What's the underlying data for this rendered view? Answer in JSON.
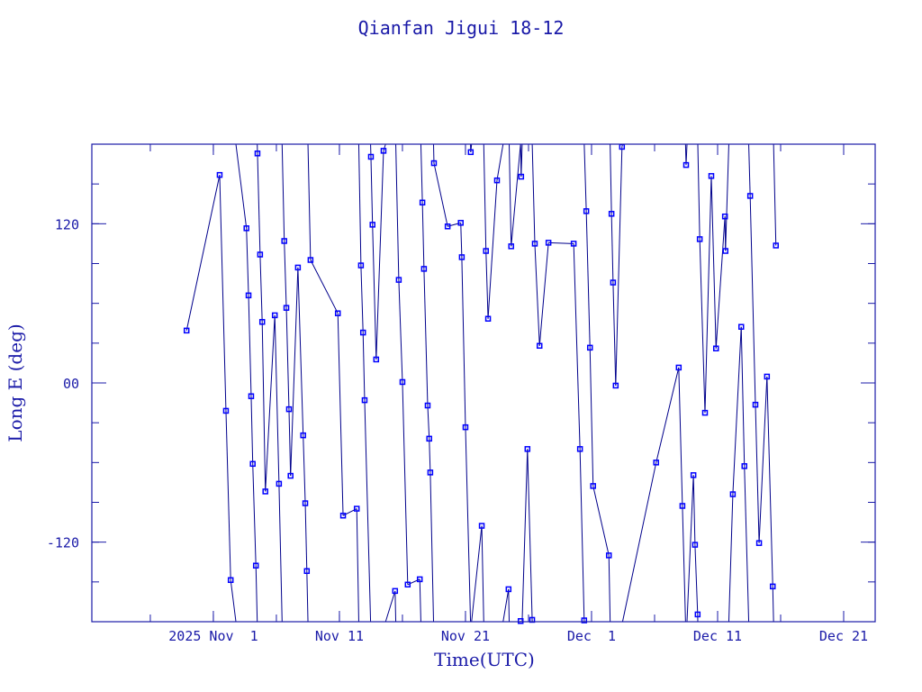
{
  "chart_data": {
    "type": "line",
    "title": "Qianfan Jigui 18-12",
    "xlabel": "Time(UTC)",
    "ylabel": "Long E (deg)",
    "xlim": [
      "2025-10-22T08:40",
      "2025-12-23T12:00"
    ],
    "ylim": [
      -180,
      180
    ],
    "grid": false,
    "colors": {
      "axes": "#1a1aa8",
      "line": "#00008b",
      "marker": "#0000ff"
    },
    "marker": "square",
    "wrap_longitude": true,
    "x_ticks": [
      {
        "date": "2025-11-01T00:00",
        "label": "2025 Nov  1"
      },
      {
        "date": "2025-11-11T00:00",
        "label": "Nov 11"
      },
      {
        "date": "2025-11-21T00:00",
        "label": "Nov 21"
      },
      {
        "date": "2025-12-01T00:00",
        "label": "Dec  1"
      },
      {
        "date": "2025-12-11T00:00",
        "label": "Dec 11"
      },
      {
        "date": "2025-12-21T00:00",
        "label": "Dec 21"
      }
    ],
    "x_minor_tick_days": 5,
    "y_ticks": [
      {
        "value": 120,
        "label": "120"
      },
      {
        "value": 0,
        "label": "00"
      },
      {
        "value": -120,
        "label": "-120"
      }
    ],
    "y_minor_tick_step": 30,
    "points": [
      [
        "2025-10-29T21:00",
        39.5
      ],
      [
        "2025-11-01T12:00",
        156.8
      ],
      [
        "2025-11-02T00:00",
        -21
      ],
      [
        "2025-11-02T09:00",
        -148.6
      ],
      [
        "2025-11-03T15:00",
        116.6
      ],
      [
        "2025-11-03T19:00",
        66
      ],
      [
        "2025-11-04T00:00",
        -10
      ],
      [
        "2025-11-04T03:00",
        -61
      ],
      [
        "2025-11-04T09:00",
        -137.7
      ],
      [
        "2025-11-04T12:00",
        173
      ],
      [
        "2025-11-04T17:00",
        96.8
      ],
      [
        "2025-11-04T21:00",
        46
      ],
      [
        "2025-11-05T03:00",
        -81.8
      ],
      [
        "2025-11-05T21:00",
        51
      ],
      [
        "2025-11-06T05:00",
        -76
      ],
      [
        "2025-11-06T15:00",
        107
      ],
      [
        "2025-11-06T19:00",
        56.6
      ],
      [
        "2025-11-07T00:00",
        -19.8
      ],
      [
        "2025-11-07T03:00",
        -70
      ],
      [
        "2025-11-07T17:00",
        87
      ],
      [
        "2025-11-08T03:00",
        -39.5
      ],
      [
        "2025-11-08T07:00",
        -90.7
      ],
      [
        "2025-11-08T10:00",
        -141.8
      ],
      [
        "2025-11-08T17:00",
        92.7
      ],
      [
        "2025-11-10T21:00",
        52.5
      ],
      [
        "2025-11-11T07:00",
        -100
      ],
      [
        "2025-11-12T09:00",
        -94.8
      ],
      [
        "2025-11-12T17:00",
        88.6
      ],
      [
        "2025-11-12T21:00",
        38
      ],
      [
        "2025-11-13T00:00",
        -13
      ],
      [
        "2025-11-13T12:00",
        170.5
      ],
      [
        "2025-11-13T15:00",
        119.3
      ],
      [
        "2025-11-13T22:00",
        17.7
      ],
      [
        "2025-11-14T12:00",
        175
      ],
      [
        "2025-11-15T10:00",
        -156.8
      ],
      [
        "2025-11-15T17:00",
        77.7
      ],
      [
        "2025-11-16T00:00",
        0.7
      ],
      [
        "2025-11-16T10:00",
        -152
      ],
      [
        "2025-11-17T09:00",
        -148
      ],
      [
        "2025-11-17T14:00",
        136
      ],
      [
        "2025-11-17T17:00",
        86
      ],
      [
        "2025-11-18T00:00",
        -17
      ],
      [
        "2025-11-18T03:00",
        -42
      ],
      [
        "2025-11-18T05:00",
        -67.5
      ],
      [
        "2025-11-18T12:00",
        165.7
      ],
      [
        "2025-11-19T14:00",
        118
      ],
      [
        "2025-11-20T15:00",
        120.7
      ],
      [
        "2025-11-20T17:00",
        94.8
      ],
      [
        "2025-11-21T00:00",
        -33.4
      ],
      [
        "2025-11-21T10:00",
        174
      ],
      [
        "2025-11-22T07:00",
        -107.7
      ],
      [
        "2025-11-22T15:00",
        99.5
      ],
      [
        "2025-11-22T19:00",
        48.4
      ],
      [
        "2025-11-23T12:00",
        152.7
      ],
      [
        "2025-11-24T10:00",
        -155.5
      ],
      [
        "2025-11-24T15:00",
        103
      ],
      [
        "2025-11-25T09:00",
        -179.5
      ],
      [
        "2025-11-25T10:00",
        155.5
      ],
      [
        "2025-11-25T22:00",
        -49.8
      ],
      [
        "2025-11-26T07:00",
        -178.6
      ],
      [
        "2025-11-26T12:00",
        105
      ],
      [
        "2025-11-26T21:00",
        28
      ],
      [
        "2025-11-27T14:00",
        105.7
      ],
      [
        "2025-11-29T14:00",
        105
      ],
      [
        "2025-11-30T02:00",
        -49.8
      ],
      [
        "2025-11-30T10:00",
        -179
      ],
      [
        "2025-11-30T14:00",
        129.5
      ],
      [
        "2025-11-30T21:00",
        26.6
      ],
      [
        "2025-12-01T03:00",
        -77.7
      ],
      [
        "2025-12-02T09:00",
        -130
      ],
      [
        "2025-12-02T14:00",
        127.5
      ],
      [
        "2025-12-02T17:00",
        75.7
      ],
      [
        "2025-12-02T22:00",
        -2
      ],
      [
        "2025-12-03T10:00",
        178
      ],
      [
        "2025-12-06T03:00",
        -60
      ],
      [
        "2025-12-07T22:00",
        11.6
      ],
      [
        "2025-12-08T05:00",
        -92.7
      ],
      [
        "2025-12-08T12:00",
        164.3
      ],
      [
        "2025-12-09T02:00",
        -69.5
      ],
      [
        "2025-12-09T05:00",
        -122
      ],
      [
        "2025-12-09T10:00",
        -174.5
      ],
      [
        "2025-12-09T14:00",
        108.4
      ],
      [
        "2025-12-10T00:00",
        -22.5
      ],
      [
        "2025-12-10T12:00",
        156
      ],
      [
        "2025-12-10T21:00",
        26
      ],
      [
        "2025-12-11T14:00",
        125.5
      ],
      [
        "2025-12-11T15:00",
        99.5
      ],
      [
        "2025-12-12T05:00",
        -83.9
      ],
      [
        "2025-12-12T21:00",
        42.3
      ],
      [
        "2025-12-13T03:00",
        -62.7
      ],
      [
        "2025-12-13T14:00",
        141
      ],
      [
        "2025-12-14T00:00",
        -16.4
      ],
      [
        "2025-12-14T07:00",
        -120.7
      ],
      [
        "2025-12-14T22:00",
        4.8
      ],
      [
        "2025-12-15T09:00",
        -153.4
      ],
      [
        "2025-12-15T15:00",
        103.6
      ]
    ]
  }
}
